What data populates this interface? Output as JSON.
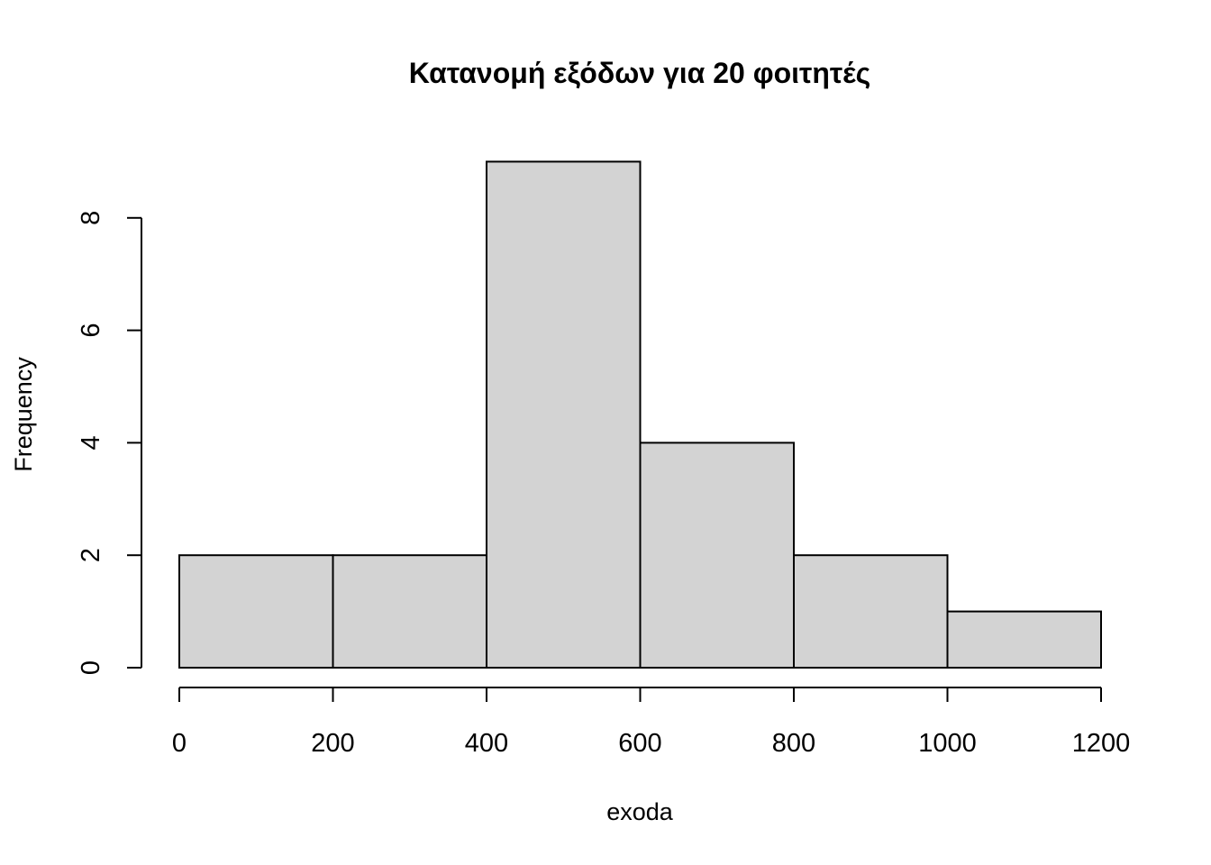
{
  "chart_data": {
    "type": "bar",
    "histogram": true,
    "title": "Κατανομή εξόδων για 20 φοιτητές",
    "xlabel": "exoda",
    "ylabel": "Frequency",
    "bins": [
      {
        "from": 0,
        "to": 200,
        "count": 2
      },
      {
        "from": 200,
        "to": 400,
        "count": 2
      },
      {
        "from": 400,
        "to": 600,
        "count": 9
      },
      {
        "from": 600,
        "to": 800,
        "count": 4
      },
      {
        "from": 800,
        "to": 1000,
        "count": 2
      },
      {
        "from": 1000,
        "to": 1200,
        "count": 1
      }
    ],
    "x_ticks": [
      "0",
      "200",
      "400",
      "600",
      "800",
      "1000",
      "1200"
    ],
    "y_ticks": [
      "0",
      "2",
      "4",
      "6",
      "8"
    ],
    "xlim": [
      0,
      1200
    ],
    "ylim": [
      0,
      9
    ],
    "grid": false,
    "legend": "none",
    "colors": {
      "bar_fill": "#d3d3d3",
      "bar_stroke": "#000000",
      "axis": "#000000",
      "text": "#000000"
    }
  }
}
